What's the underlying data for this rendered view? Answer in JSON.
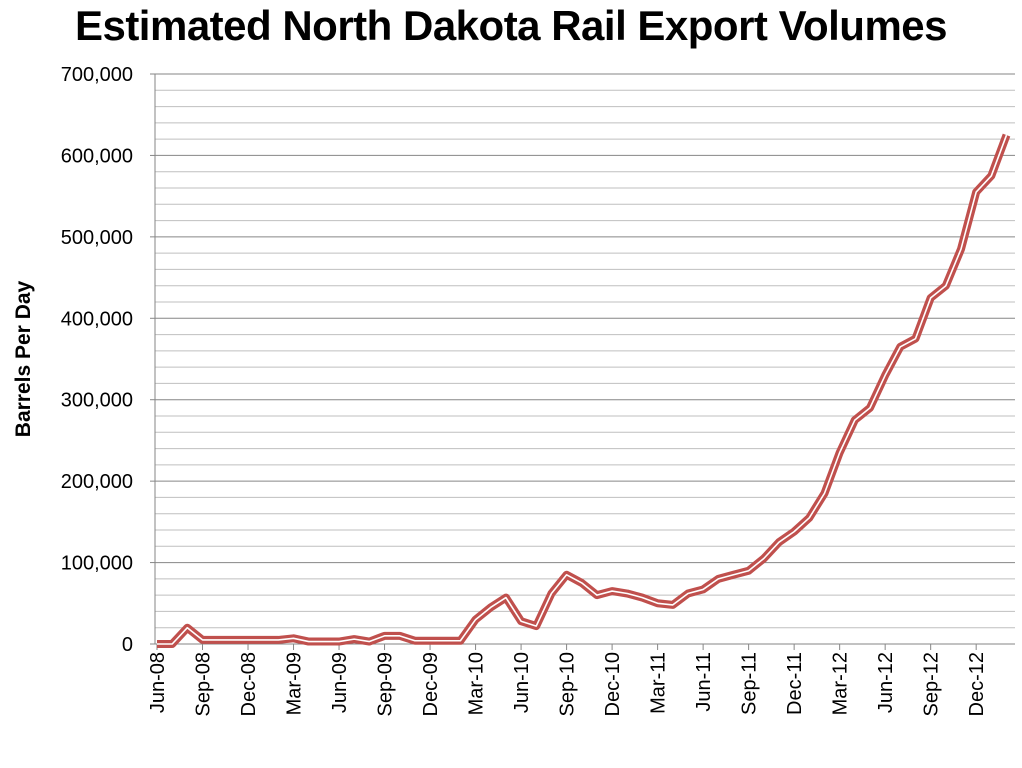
{
  "chart_data": {
    "type": "line",
    "title": "Estimated North Dakota Rail Export Volumes",
    "xlabel": "",
    "ylabel": "Barrels Per Day",
    "ylim": [
      0,
      700000
    ],
    "y_major_step": 100000,
    "y_minor_step": 20000,
    "grid": true,
    "legend": "none",
    "yticks": [
      "0",
      "100,000",
      "200,000",
      "300,000",
      "400,000",
      "500,000",
      "600,000",
      "700,000"
    ],
    "x": [
      "Jun-08",
      "Jul-08",
      "Aug-08",
      "Sep-08",
      "Oct-08",
      "Nov-08",
      "Dec-08",
      "Jan-09",
      "Feb-09",
      "Mar-09",
      "Apr-09",
      "May-09",
      "Jun-09",
      "Jul-09",
      "Aug-09",
      "Sep-09",
      "Oct-09",
      "Nov-09",
      "Dec-09",
      "Jan-10",
      "Feb-10",
      "Mar-10",
      "Apr-10",
      "May-10",
      "Jun-10",
      "Jul-10",
      "Aug-10",
      "Sep-10",
      "Oct-10",
      "Nov-10",
      "Dec-10",
      "Jan-11",
      "Feb-11",
      "Mar-11",
      "Apr-11",
      "May-11",
      "Jun-11",
      "Jul-11",
      "Aug-11",
      "Sep-11",
      "Oct-11",
      "Nov-11",
      "Dec-11",
      "Jan-12",
      "Feb-12",
      "Mar-12",
      "Apr-12",
      "May-12",
      "Jun-12",
      "Jul-12",
      "Aug-12",
      "Sep-12",
      "Oct-12",
      "Nov-12",
      "Dec-12",
      "Jan-13",
      "Feb-13"
    ],
    "xticks": [
      "Jun-08",
      "Sep-08",
      "Dec-08",
      "Mar-09",
      "Jun-09",
      "Sep-09",
      "Dec-09",
      "Mar-10",
      "Jun-10",
      "Sep-10",
      "Dec-10",
      "Mar-11",
      "Jun-11",
      "Sep-11",
      "Dec-11",
      "Mar-12",
      "Jun-12",
      "Sep-12",
      "Dec-12"
    ],
    "series": [
      {
        "name": "Barrels Per Day",
        "color": "#c0504d",
        "values": [
          0,
          0,
          20000,
          5000,
          5000,
          5000,
          5000,
          5000,
          5000,
          7000,
          3000,
          3000,
          3000,
          6000,
          3000,
          10000,
          10000,
          4000,
          4000,
          4000,
          4000,
          30000,
          45000,
          57000,
          28000,
          22000,
          62000,
          85000,
          75000,
          60000,
          65000,
          62000,
          57000,
          50000,
          48000,
          62000,
          67000,
          80000,
          85000,
          90000,
          105000,
          125000,
          138000,
          155000,
          185000,
          235000,
          275000,
          290000,
          330000,
          365000,
          375000,
          425000,
          440000,
          485000,
          555000,
          575000,
          625000
        ]
      }
    ]
  }
}
